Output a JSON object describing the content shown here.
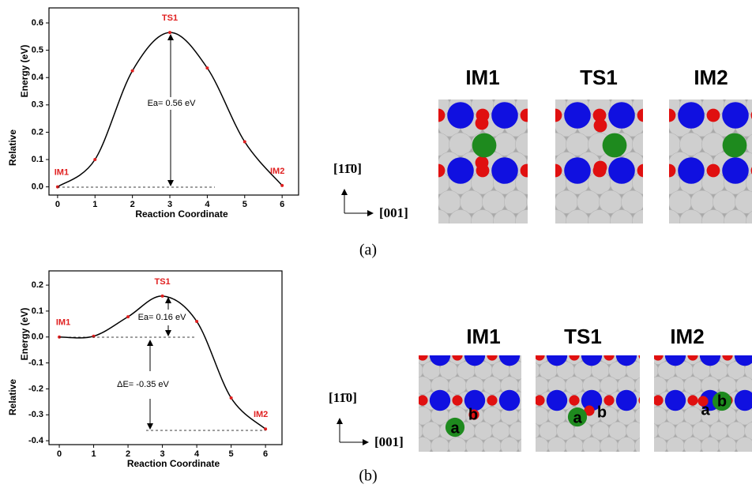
{
  "chart_data": [
    {
      "type": "line",
      "xlabel": "Reaction Coordinate",
      "ylabel": [
        "Relative",
        "Energy (eV)"
      ],
      "x": [
        0,
        1,
        2,
        3,
        4,
        5,
        6
      ],
      "values": [
        0,
        0.1,
        0.425,
        0.565,
        0.435,
        0.165,
        0.005
      ],
      "point_labels": [
        "IM1",
        null,
        null,
        "TS1",
        null,
        null,
        "IM2"
      ],
      "annotations": [
        "Ea= 0.56 eV"
      ],
      "color": "#000000",
      "point_color": "#e02020",
      "xlim": [
        -0.23,
        6.44
      ],
      "ylim": [
        -0.03,
        0.655
      ],
      "xticks": [
        0,
        1,
        2,
        3,
        4,
        5,
        6
      ],
      "yticks": [
        {
          "value": 0,
          "label": "0.0"
        },
        0.1,
        0.2,
        0.3,
        0.4,
        0.5,
        0.6
      ]
    },
    {
      "type": "line",
      "xlabel": "Reaction Coordinate",
      "ylabel": [
        "Relative",
        "Energy (eV)"
      ],
      "x": [
        0,
        1,
        2,
        3,
        4,
        5,
        6
      ],
      "values": [
        0,
        0.003,
        0.078,
        0.158,
        0.06,
        -0.235,
        -0.355
      ],
      "point_labels": [
        "IM1",
        null,
        null,
        "TS1",
        null,
        null,
        "IM2"
      ],
      "annotations": [
        "Ea= 0.16 eV",
        "ΔE= -0.35 eV"
      ],
      "color": "#000000",
      "point_color": "#e02020",
      "xlim": [
        -0.3,
        6.48
      ],
      "ylim": [
        -0.415,
        0.255
      ],
      "xticks": [
        0,
        1,
        2,
        3,
        4,
        5,
        6
      ],
      "yticks": [
        -0.4,
        -0.3,
        -0.2,
        -0.1,
        {
          "value": 0,
          "label": "0.0"
        },
        0.1,
        0.2
      ]
    }
  ],
  "structures": [
    {
      "panel_label": "(a)",
      "labels": [
        "IM1",
        "TS1",
        "IM2"
      ],
      "directions": [
        "[11̄0]",
        "[001]"
      ]
    },
    {
      "panel_label": "(b)",
      "labels": [
        "IM1",
        "TS1",
        "IM2"
      ],
      "directions": [
        "[11̄0]",
        "[001]"
      ],
      "site_labels": [
        "a",
        "b"
      ]
    }
  ]
}
